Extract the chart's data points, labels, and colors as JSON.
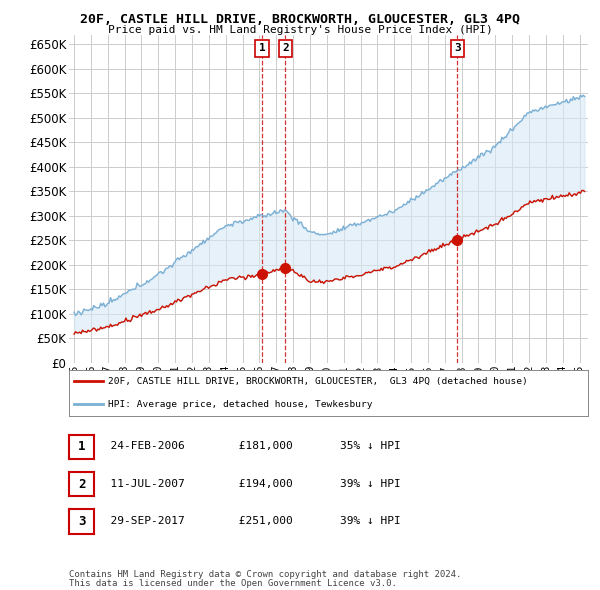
{
  "title": "20F, CASTLE HILL DRIVE, BROCKWORTH, GLOUCESTER, GL3 4PQ",
  "subtitle": "Price paid vs. HM Land Registry's House Price Index (HPI)",
  "ylim": [
    0,
    668000
  ],
  "yticks": [
    0,
    50000,
    100000,
    150000,
    200000,
    250000,
    300000,
    350000,
    400000,
    450000,
    500000,
    550000,
    600000,
    650000
  ],
  "xlim_start": 1994.7,
  "xlim_end": 2025.5,
  "legend_line1": "20F, CASTLE HILL DRIVE, BROCKWORTH, GLOUCESTER,  GL3 4PQ (detached house)",
  "legend_line2": "HPI: Average price, detached house, Tewkesbury",
  "transactions": [
    {
      "num": 1,
      "date": "24-FEB-2006",
      "price": 181000,
      "pct": "35%",
      "direction": "↓",
      "year": 2006.15
    },
    {
      "num": 2,
      "date": "11-JUL-2007",
      "price": 194000,
      "pct": "39%",
      "direction": "↓",
      "year": 2007.54
    },
    {
      "num": 3,
      "date": "29-SEP-2017",
      "price": 251000,
      "pct": "39%",
      "direction": "↓",
      "year": 2017.75
    }
  ],
  "footnote1": "Contains HM Land Registry data © Crown copyright and database right 2024.",
  "footnote2": "This data is licensed under the Open Government Licence v3.0.",
  "hpi_color": "#7bafd4",
  "hpi_fill": "#d6e8f5",
  "property_color": "#cc1100",
  "vline_color": "#cc0000",
  "background_color": "#ffffff",
  "grid_color": "#cccccc"
}
